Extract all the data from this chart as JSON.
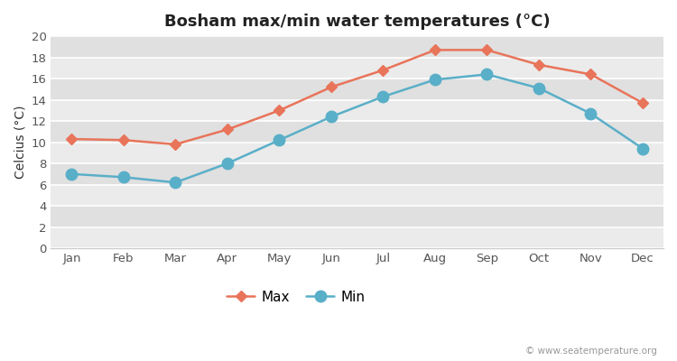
{
  "title": "Bosham max/min water temperatures (°C)",
  "ylabel": "Celcius (°C)",
  "months": [
    "Jan",
    "Feb",
    "Mar",
    "Apr",
    "May",
    "Jun",
    "Jul",
    "Aug",
    "Sep",
    "Oct",
    "Nov",
    "Dec"
  ],
  "max_temps": [
    10.3,
    10.2,
    9.8,
    11.2,
    13.0,
    15.2,
    16.8,
    18.7,
    18.7,
    17.3,
    16.4,
    13.7
  ],
  "min_temps": [
    7.0,
    6.7,
    6.2,
    8.0,
    10.2,
    12.4,
    14.3,
    15.9,
    16.4,
    15.1,
    12.7,
    9.4
  ],
  "max_color": "#e8745a",
  "min_color": "#5aafc8",
  "fig_bg_color": "#ffffff",
  "plot_bg_light": "#ebebeb",
  "plot_bg_dark": "#e0e0e0",
  "grid_color": "#ffffff",
  "ylim": [
    0,
    20
  ],
  "yticks": [
    0,
    2,
    4,
    6,
    8,
    10,
    12,
    14,
    16,
    18,
    20
  ],
  "watermark": "© www.seatemperature.org",
  "legend_labels": [
    "Max",
    "Min"
  ],
  "title_fontsize": 13,
  "label_fontsize": 10,
  "tick_fontsize": 9.5,
  "max_marker": "D",
  "min_marker": "o",
  "max_marker_size": 6,
  "min_marker_size": 9,
  "line_width": 1.8
}
